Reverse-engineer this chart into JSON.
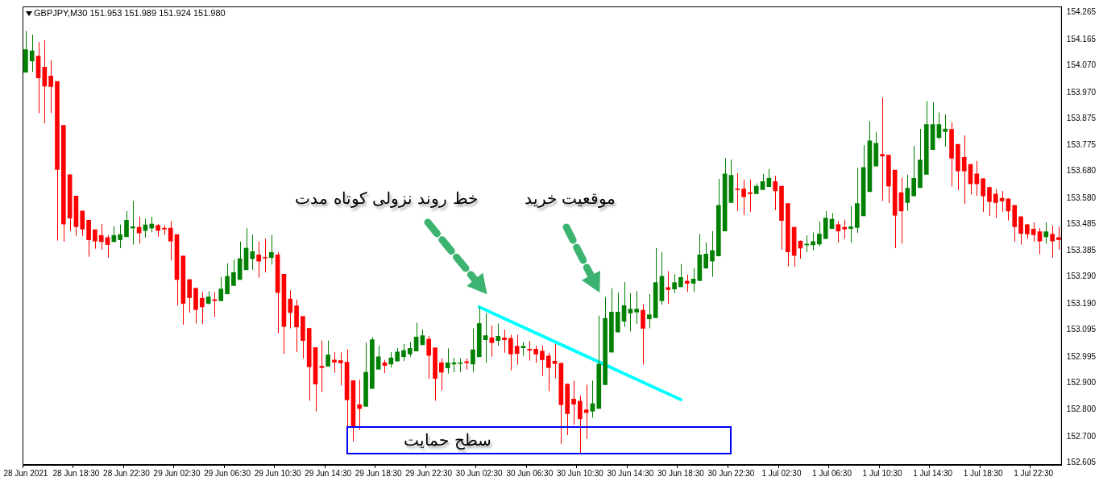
{
  "chart_data": {
    "type": "candlestick",
    "title": "GBPJPY,M30 151.953 151.989 151.924 151.980",
    "categories": [
      "28 Jun 2021",
      null,
      null,
      null,
      null,
      null,
      null,
      null,
      "28 Jun 18:30",
      null,
      null,
      null,
      null,
      null,
      null,
      null,
      "28 Jun 22:30",
      null,
      null,
      null,
      null,
      null,
      null,
      null,
      "29 Jun 02:30",
      null,
      null,
      null,
      null,
      null,
      null,
      null,
      "29 Jun 06:30",
      null,
      null,
      null,
      null,
      null,
      null,
      null,
      "29 Jun 10:30",
      null,
      null,
      null,
      null,
      null,
      null,
      null,
      "29 Jun 14:30",
      null,
      null,
      null,
      null,
      null,
      null,
      null,
      "29 Jun 18:30",
      null,
      null,
      null,
      null,
      null,
      null,
      null,
      "29 Jun 22:30",
      null,
      null,
      null,
      null,
      null,
      null,
      null,
      "30 Jun 02:30",
      null,
      null,
      null,
      null,
      null,
      null,
      null,
      "30 Jun 06:30",
      null,
      null,
      null,
      null,
      null,
      null,
      null,
      "30 Jun 10:30",
      null,
      null,
      null,
      null,
      null,
      null,
      null,
      "30 Jun 14:30",
      null,
      null,
      null,
      null,
      null,
      null,
      null,
      "30 Jun 18:30",
      null,
      null,
      null,
      null,
      null,
      null,
      null,
      "30 Jun 22:30",
      null,
      null,
      null,
      null,
      null,
      null,
      null,
      "1 Jul 02:30",
      null,
      null,
      null,
      null,
      null,
      null,
      null,
      "1 Jul 06:30",
      null,
      null,
      null,
      null,
      null,
      null,
      null,
      "1 Jul 10:30",
      null,
      null,
      null,
      null,
      null,
      null,
      null,
      "1 Jul 14:30",
      null,
      null,
      null,
      null,
      null,
      null,
      null,
      "1 Jul 18:30",
      null,
      null,
      null,
      null,
      null,
      null,
      null,
      "1 Jul 22:30",
      null,
      null,
      null,
      null
    ],
    "ohlc": [
      [
        154.045,
        154.198,
        154.045,
        154.129
      ],
      [
        154.087,
        154.184,
        154.047,
        154.124
      ],
      [
        154.105,
        154.156,
        153.894,
        154.024
      ],
      [
        154.064,
        154.163,
        153.857,
        153.994
      ],
      [
        154.031,
        154.09,
        153.894,
        153.992
      ],
      [
        154.011,
        154.011,
        153.424,
        153.686
      ],
      [
        153.849,
        153.849,
        153.42,
        153.485
      ],
      [
        153.667,
        153.667,
        153.459,
        153.507
      ],
      [
        153.588,
        153.588,
        153.441,
        153.475
      ],
      [
        153.533,
        153.533,
        153.441,
        153.466
      ],
      [
        153.499,
        153.499,
        153.364,
        153.427
      ],
      [
        153.464,
        153.464,
        153.394,
        153.422
      ],
      [
        153.443,
        153.485,
        153.39,
        153.42
      ],
      [
        153.435,
        153.443,
        153.361,
        153.409
      ],
      [
        153.42,
        153.477,
        153.417,
        153.443
      ],
      [
        153.427,
        153.483,
        153.396,
        153.446
      ],
      [
        153.438,
        153.533,
        153.438,
        153.499
      ],
      [
        153.47,
        153.57,
        153.409,
        153.475
      ],
      [
        153.473,
        153.512,
        153.413,
        153.452
      ],
      [
        153.461,
        153.504,
        153.435,
        153.482
      ],
      [
        153.47,
        153.512,
        153.454,
        153.485
      ],
      [
        153.48,
        153.485,
        153.438,
        153.461
      ],
      [
        153.47,
        153.48,
        153.445,
        153.466
      ],
      [
        153.47,
        153.496,
        153.35,
        153.422
      ],
      [
        153.446,
        153.446,
        153.184,
        153.28
      ],
      [
        153.367,
        153.367,
        153.113,
        153.192
      ],
      [
        153.28,
        153.28,
        153.158,
        153.213
      ],
      [
        153.248,
        153.248,
        153.118,
        153.169
      ],
      [
        153.211,
        153.234,
        153.116,
        153.179
      ],
      [
        153.192,
        153.237,
        153.188,
        153.216
      ],
      [
        153.206,
        153.234,
        153.142,
        153.202
      ],
      [
        153.202,
        153.29,
        153.2,
        153.245
      ],
      [
        153.227,
        153.34,
        153.227,
        153.292
      ],
      [
        153.258,
        153.353,
        153.258,
        153.306
      ],
      [
        153.28,
        153.42,
        153.28,
        153.357
      ],
      [
        153.316,
        153.47,
        153.316,
        153.396
      ],
      [
        153.357,
        153.445,
        153.316,
        153.383
      ],
      [
        153.371,
        153.42,
        153.287,
        153.348
      ],
      [
        153.362,
        153.431,
        153.306,
        153.359
      ],
      [
        153.361,
        153.445,
        153.335,
        153.38
      ],
      [
        153.371,
        153.382,
        153.082,
        153.232
      ],
      [
        153.3,
        153.3,
        153.005,
        153.107
      ],
      [
        153.208,
        153.24,
        153.1,
        153.158
      ],
      [
        153.183,
        153.206,
        153.012,
        153.105
      ],
      [
        153.144,
        153.144,
        152.989,
        153.055
      ],
      [
        153.1,
        153.1,
        152.833,
        152.958
      ],
      [
        153.029,
        153.029,
        152.794,
        152.894
      ],
      [
        152.96,
        153.055,
        152.865,
        152.955
      ],
      [
        152.96,
        153.055,
        152.96,
        153.002
      ],
      [
        152.983,
        153.012,
        152.936,
        152.975
      ],
      [
        152.981,
        153.012,
        152.889,
        152.972
      ],
      [
        152.975,
        153.023,
        152.736,
        152.836
      ],
      [
        152.907,
        152.907,
        152.683,
        152.736
      ],
      [
        152.818,
        152.91,
        152.725,
        152.804
      ],
      [
        152.812,
        153.047,
        152.812,
        152.938
      ],
      [
        152.878,
        153.068,
        152.878,
        153.058
      ],
      [
        152.949,
        153.036,
        152.947,
        152.995
      ],
      [
        152.973,
        152.984,
        152.934,
        152.963
      ],
      [
        152.968,
        153.012,
        152.955,
        152.991
      ],
      [
        152.979,
        153.028,
        152.979,
        153.013
      ],
      [
        152.995,
        153.042,
        152.979,
        153.018
      ],
      [
        153.005,
        153.05,
        152.995,
        153.026
      ],
      [
        153.016,
        153.121,
        153.016,
        153.068
      ],
      [
        153.039,
        153.095,
        153.039,
        153.073
      ],
      [
        153.06,
        153.071,
        152.913,
        153.0
      ],
      [
        153.028,
        153.028,
        152.833,
        152.915
      ],
      [
        152.973,
        152.989,
        152.871,
        152.938
      ],
      [
        152.954,
        153.026,
        152.933,
        152.973
      ],
      [
        152.968,
        152.991,
        152.938,
        152.973
      ],
      [
        152.97,
        152.989,
        152.938,
        152.973
      ],
      [
        152.977,
        152.989,
        152.947,
        152.973
      ],
      [
        152.968,
        153.1,
        152.938,
        153.021
      ],
      [
        152.995,
        153.179,
        152.995,
        153.118
      ],
      [
        153.058,
        153.156,
        152.973,
        153.073
      ],
      [
        153.065,
        153.11,
        152.995,
        153.047
      ],
      [
        153.055,
        153.118,
        153.036,
        153.071
      ],
      [
        153.065,
        153.095,
        153.01,
        153.058
      ],
      [
        153.063,
        153.076,
        152.945,
        153.005
      ],
      [
        153.034,
        153.076,
        152.966,
        153.007
      ],
      [
        153.028,
        153.049,
        152.998,
        153.034
      ],
      [
        153.023,
        153.053,
        152.981,
        153.019
      ],
      [
        153.023,
        153.036,
        152.973,
        153.005
      ],
      [
        153.016,
        153.036,
        152.924,
        152.984
      ],
      [
        152.998,
        153.01,
        152.868,
        152.955
      ],
      [
        152.979,
        153.042,
        152.915,
        152.97
      ],
      [
        152.971,
        152.973,
        152.674,
        152.818
      ],
      [
        152.894,
        152.896,
        152.706,
        152.785
      ],
      [
        152.839,
        152.907,
        152.744,
        152.82
      ],
      [
        152.831,
        152.852,
        152.639,
        152.766
      ],
      [
        152.799,
        152.892,
        152.692,
        152.789
      ],
      [
        152.794,
        152.907,
        152.77,
        152.822
      ],
      [
        152.804,
        153.147,
        152.804,
        152.968
      ],
      [
        152.892,
        153.216,
        152.892,
        153.137
      ],
      [
        153.012,
        153.248,
        153.012,
        153.16
      ],
      [
        153.086,
        153.232,
        153.086,
        153.16
      ],
      [
        153.126,
        153.271,
        153.105,
        153.184
      ],
      [
        153.156,
        153.23,
        153.089,
        153.171
      ],
      [
        153.16,
        153.237,
        153.116,
        153.171
      ],
      [
        153.167,
        153.19,
        152.966,
        153.1
      ],
      [
        153.135,
        153.227,
        153.1,
        153.15
      ],
      [
        153.139,
        153.396,
        153.139,
        153.269
      ],
      [
        153.202,
        153.382,
        153.187,
        153.292
      ],
      [
        153.251,
        153.311,
        153.19,
        153.243
      ],
      [
        153.245,
        153.3,
        153.23,
        153.269
      ],
      [
        153.253,
        153.337,
        153.253,
        153.288
      ],
      [
        153.274,
        153.298,
        153.234,
        153.266
      ],
      [
        153.266,
        153.322,
        153.234,
        153.282
      ],
      [
        153.276,
        153.448,
        153.276,
        153.371
      ],
      [
        153.322,
        153.417,
        153.322,
        153.374
      ],
      [
        153.348,
        153.459,
        153.29,
        153.387
      ],
      [
        153.367,
        153.652,
        153.367,
        153.554
      ],
      [
        153.459,
        153.728,
        153.459,
        153.67
      ],
      [
        153.564,
        153.723,
        153.564,
        153.665
      ],
      [
        153.614,
        153.673,
        153.533,
        153.612
      ],
      [
        153.614,
        153.649,
        153.517,
        153.586
      ],
      [
        153.601,
        153.649,
        153.53,
        153.597
      ],
      [
        153.597,
        153.635,
        153.597,
        153.625
      ],
      [
        153.612,
        153.67,
        153.612,
        153.642
      ],
      [
        153.623,
        153.688,
        153.623,
        153.654
      ],
      [
        153.642,
        153.663,
        153.536,
        153.607
      ],
      [
        153.625,
        153.625,
        153.39,
        153.498
      ],
      [
        153.561,
        153.561,
        153.329,
        153.382
      ],
      [
        153.473,
        153.473,
        153.327,
        153.369
      ],
      [
        153.422,
        153.424,
        153.357,
        153.396
      ],
      [
        153.408,
        153.443,
        153.382,
        153.411
      ],
      [
        153.408,
        153.454,
        153.388,
        153.42
      ],
      [
        153.411,
        153.494,
        153.403,
        153.448
      ],
      [
        153.431,
        153.533,
        153.431,
        153.507
      ],
      [
        153.468,
        153.525,
        153.468,
        153.503
      ],
      [
        153.483,
        153.496,
        153.417,
        153.459
      ],
      [
        153.473,
        153.501,
        153.431,
        153.466
      ],
      [
        153.468,
        153.551,
        153.417,
        153.475
      ],
      [
        153.472,
        153.693,
        153.452,
        153.561
      ],
      [
        153.515,
        153.776,
        153.515,
        153.694
      ],
      [
        153.604,
        153.865,
        153.604,
        153.792
      ],
      [
        153.699,
        153.825,
        153.699,
        153.783
      ],
      [
        153.742,
        153.952,
        153.57,
        153.736
      ],
      [
        153.739,
        153.739,
        153.562,
        153.625
      ],
      [
        153.684,
        153.684,
        153.396,
        153.517
      ],
      [
        153.601,
        153.656,
        153.413,
        153.533
      ],
      [
        153.564,
        153.667,
        153.533,
        153.617
      ],
      [
        153.589,
        153.773,
        153.589,
        153.654
      ],
      [
        153.619,
        153.836,
        153.619,
        153.721
      ],
      [
        153.668,
        153.939,
        153.668,
        153.852
      ],
      [
        153.76,
        153.934,
        153.76,
        153.852
      ],
      [
        153.804,
        153.897,
        153.797,
        153.852
      ],
      [
        153.826,
        153.889,
        153.771,
        153.836
      ],
      [
        153.834,
        153.86,
        153.623,
        153.728
      ],
      [
        153.779,
        153.779,
        153.61,
        153.681
      ],
      [
        153.731,
        153.812,
        153.559,
        153.681
      ],
      [
        153.705,
        153.707,
        153.594,
        153.633
      ],
      [
        153.67,
        153.718,
        153.589,
        153.633
      ],
      [
        153.652,
        153.654,
        153.53,
        153.589
      ],
      [
        153.62,
        153.623,
        153.515,
        153.568
      ],
      [
        153.596,
        153.614,
        153.507,
        153.564
      ],
      [
        153.58,
        153.607,
        153.53,
        153.57
      ],
      [
        153.578,
        153.58,
        153.498,
        153.533
      ],
      [
        153.554,
        153.554,
        153.42,
        153.475
      ],
      [
        153.512,
        153.514,
        153.409,
        153.45
      ],
      [
        153.483,
        153.485,
        153.431,
        153.448
      ],
      [
        153.466,
        153.491,
        153.42,
        153.445
      ],
      [
        153.457,
        153.47,
        153.374,
        153.422
      ],
      [
        153.438,
        153.491,
        153.413,
        153.457
      ],
      [
        153.448,
        153.48,
        153.361,
        153.422
      ],
      [
        153.435,
        153.475,
        153.39,
        153.427
      ]
    ],
    "colors": [
      "#008000",
      "#008000",
      "#ff0000",
      "#ff0000",
      "#ff0000",
      "#ff0000",
      "#ff0000",
      "#ff0000",
      "#ff0000",
      "#ff0000",
      "#ff0000",
      "#ff0000",
      "#ff0000",
      "#ff0000",
      "#008000",
      "#008000",
      "#008000",
      "#008000",
      "#ff0000",
      "#008000",
      "#008000",
      "#ff0000",
      "#ff0000",
      "#ff0000",
      "#ff0000",
      "#ff0000",
      "#ff0000",
      "#ff0000",
      "#ff0000",
      "#008000",
      "#ff0000",
      "#008000",
      "#008000",
      "#008000",
      "#008000",
      "#008000",
      "#008000",
      "#ff0000",
      "#ff0000",
      "#008000",
      "#ff0000",
      "#ff0000",
      "#ff0000",
      "#ff0000",
      "#ff0000",
      "#ff0000",
      "#ff0000",
      "#ff0000",
      "#008000",
      "#ff0000",
      "#ff0000",
      "#ff0000",
      "#ff0000",
      "#ff0000",
      "#008000",
      "#008000",
      "#008000",
      "#ff0000",
      "#008000",
      "#008000",
      "#008000",
      "#008000",
      "#008000",
      "#008000",
      "#ff0000",
      "#ff0000",
      "#ff0000",
      "#008000",
      "#008000",
      "#008000",
      "#ff0000",
      "#008000",
      "#008000",
      "#008000",
      "#ff0000",
      "#008000",
      "#ff0000",
      "#ff0000",
      "#ff0000",
      "#008000",
      "#ff0000",
      "#ff0000",
      "#ff0000",
      "#ff0000",
      "#ff0000",
      "#ff0000",
      "#ff0000",
      "#ff0000",
      "#ff0000",
      "#ff0000",
      "#008000",
      "#008000",
      "#008000",
      "#008000",
      "#008000",
      "#008000",
      "#008000",
      "#008000",
      "#ff0000",
      "#008000",
      "#008000",
      "#008000",
      "#ff0000",
      "#008000",
      "#008000",
      "#ff0000",
      "#008000",
      "#008000",
      "#008000",
      "#008000",
      "#008000",
      "#008000",
      "#008000",
      "#ff0000",
      "#ff0000",
      "#ff0000",
      "#008000",
      "#008000",
      "#008000",
      "#ff0000",
      "#ff0000",
      "#ff0000",
      "#ff0000",
      "#ff0000",
      "#008000",
      "#008000",
      "#008000",
      "#008000",
      "#008000",
      "#ff0000",
      "#ff0000",
      "#008000",
      "#008000",
      "#008000",
      "#008000",
      "#008000",
      "#ff0000",
      "#ff0000",
      "#ff0000",
      "#ff0000",
      "#008000",
      "#008000",
      "#008000",
      "#008000",
      "#008000",
      "#008000",
      "#008000",
      "#ff0000",
      "#ff0000",
      "#ff0000",
      "#ff0000",
      "#ff0000",
      "#ff0000",
      "#ff0000",
      "#ff0000",
      "#ff0000",
      "#ff0000",
      "#ff0000",
      "#ff0000",
      "#ff0000",
      "#ff0000",
      "#ff0000",
      "#008000",
      "#ff0000",
      "#ff0000"
    ],
    "series": [
      {
        "type": "line",
        "x": [
          "30 Jun 02:30",
          "30 Jun 18:30"
        ],
        "values": [
          153.179,
          152.837
        ],
        "color": "#00ffff"
      }
    ],
    "ylim": [
      152.596,
      154.288
    ],
    "yticks": [
      154.265,
      154.165,
      {
        "value": 154.07,
        "label": "154.070"
      },
      {
        "value": 153.97,
        "label": "153.970"
      },
      153.875,
      153.775,
      {
        "value": 153.68,
        "label": "153.680"
      },
      {
        "value": 153.58,
        "label": "153.580"
      },
      153.485,
      153.385,
      {
        "value": 153.29,
        "label": "153.290"
      },
      {
        "value": 153.19,
        "label": "153.190"
      },
      153.095,
      152.995,
      {
        "value": 152.9,
        "label": "152.900"
      },
      {
        "value": 152.8,
        "label": "152.800"
      },
      {
        "value": 152.7,
        "label": "152.700"
      },
      152.605
    ],
    "annotations": [
      "خط روند نزولی کوتاه مدت",
      "موقعیت خرید",
      "سطح حمایت"
    ]
  }
}
